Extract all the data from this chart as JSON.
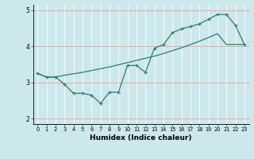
{
  "xlabel": "Humidex (Indice chaleur)",
  "background_color": "#cce8ec",
  "line_color": "#2e7d72",
  "grid_color_h": "#f0a0a0",
  "grid_color_v": "#ffffff",
  "xlim": [
    -0.5,
    23.5
  ],
  "ylim": [
    1.85,
    5.15
  ],
  "yticks": [
    2,
    3,
    4,
    5
  ],
  "xticks": [
    0,
    1,
    2,
    3,
    4,
    5,
    6,
    7,
    8,
    9,
    10,
    11,
    12,
    13,
    14,
    15,
    16,
    17,
    18,
    19,
    20,
    21,
    22,
    23
  ],
  "line1_x": [
    0,
    1,
    2,
    3,
    4,
    5,
    6,
    7,
    8,
    9,
    10,
    11,
    12,
    13,
    14,
    15,
    16,
    17,
    18,
    19,
    20,
    21,
    22,
    23
  ],
  "line1_y": [
    3.25,
    3.15,
    3.15,
    3.2,
    3.24,
    3.28,
    3.33,
    3.38,
    3.43,
    3.49,
    3.55,
    3.61,
    3.67,
    3.73,
    3.8,
    3.88,
    3.96,
    4.05,
    4.14,
    4.24,
    4.35,
    4.05,
    4.05,
    4.05
  ],
  "line2_x": [
    0,
    1,
    2,
    3,
    4,
    5,
    6,
    7,
    8,
    9,
    10,
    11,
    12,
    13,
    14,
    15,
    16,
    17,
    18,
    19,
    20,
    21,
    22,
    23
  ],
  "line2_y": [
    3.25,
    3.15,
    3.15,
    2.95,
    2.7,
    2.7,
    2.65,
    2.42,
    2.73,
    2.73,
    3.47,
    3.47,
    3.28,
    3.95,
    4.05,
    4.38,
    4.48,
    4.55,
    4.62,
    4.75,
    4.88,
    4.88,
    4.58,
    4.05
  ],
  "figsize": [
    3.2,
    2.0
  ],
  "dpi": 100
}
